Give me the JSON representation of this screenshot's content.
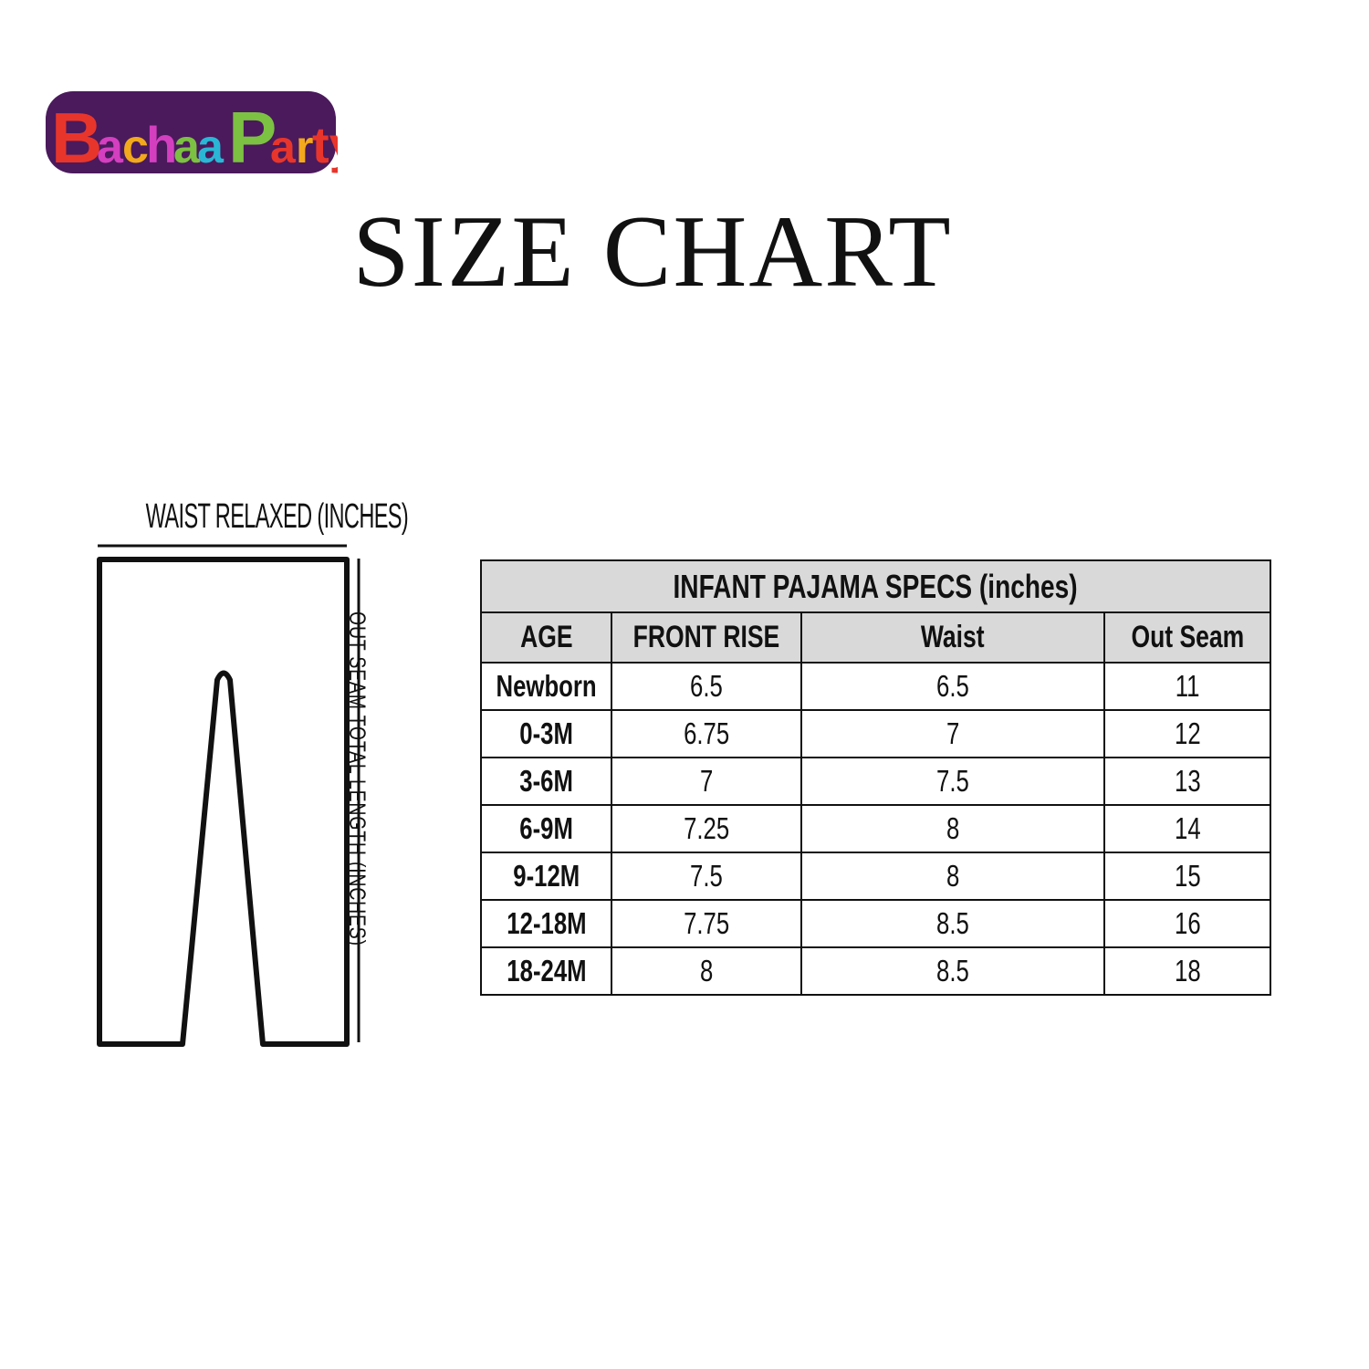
{
  "brand": {
    "logo_text": "BachaaParty",
    "colors": [
      "#e8352b",
      "#d43fc0",
      "#f2a91c",
      "#2ab7d6",
      "#7cc142",
      "#4a1a5c"
    ]
  },
  "title": "SIZE CHART",
  "diagram": {
    "waist_label": "WAIST RELAXED (INCHES)",
    "outseam_label": "OUT SEAM TOTAL LENGTH (INCHES)"
  },
  "table": {
    "title": "INFANT PAJAMA SPECS (inches)",
    "headers": [
      "AGE",
      "FRONT RISE",
      "Waist",
      "Out Seam"
    ],
    "rows": [
      [
        "Newborn",
        "6.5",
        "6.5",
        "11"
      ],
      [
        "0-3M",
        "6.75",
        "7",
        "12"
      ],
      [
        "3-6M",
        "7",
        "7.5",
        "13"
      ],
      [
        "6-9M",
        "7.25",
        "8",
        "14"
      ],
      [
        "9-12M",
        "7.5",
        "8",
        "15"
      ],
      [
        "12-18M",
        "7.75",
        "8.5",
        "16"
      ],
      [
        "18-24M",
        "8",
        "8.5",
        "18"
      ]
    ]
  }
}
